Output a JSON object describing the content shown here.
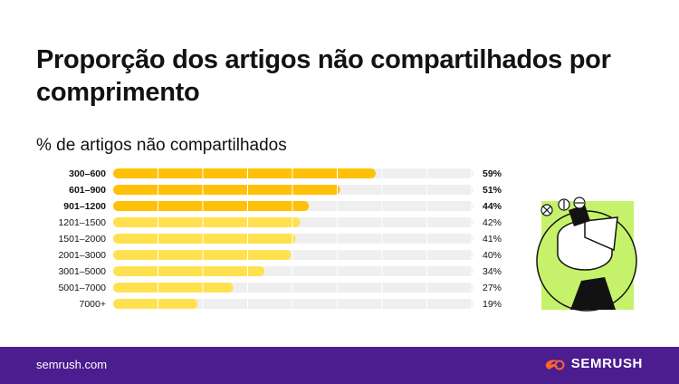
{
  "header": {
    "title": "Proporção dos artigos não compartilhados por comprimento"
  },
  "chart_data": {
    "type": "bar",
    "orientation": "horizontal",
    "title": "% de artigos não compartilhados",
    "categories": [
      "300–600",
      "601–900",
      "901–1200",
      "1201–1500",
      "1501–2000",
      "2001–3000",
      "3001–5000",
      "5001–7000",
      "7000+"
    ],
    "values": [
      59,
      51,
      44,
      42,
      41,
      40,
      34,
      27,
      19
    ],
    "value_labels": [
      "59%",
      "51%",
      "44%",
      "42%",
      "41%",
      "40%",
      "34%",
      "27%",
      "19%"
    ],
    "highlighted": [
      true,
      true,
      true,
      false,
      false,
      false,
      false,
      false,
      false
    ],
    "xlim": [
      0,
      80
    ],
    "colors": {
      "highlight": "#ffc107",
      "normal": "#ffe14f",
      "track": "#efefef"
    }
  },
  "footer": {
    "site": "semrush.com",
    "brand": "SEMRUSH",
    "brand_color": "#ff642d",
    "background": "#4b1d8f"
  }
}
